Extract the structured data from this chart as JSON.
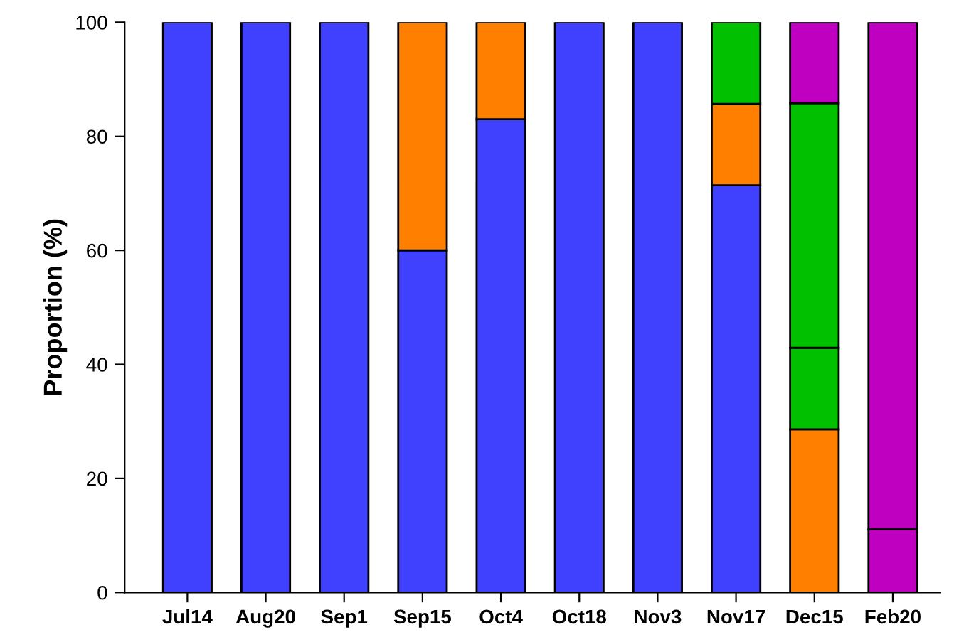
{
  "chart_data": {
    "type": "bar",
    "stacked": true,
    "ylabel": "Proportion (%)",
    "categories": [
      "Jul14",
      "Aug20",
      "Sep1",
      "Sep15",
      "Oct4",
      "Oct18",
      "Nov3",
      "Nov17",
      "Dec15",
      "Feb20"
    ],
    "series": [
      {
        "color": "#4040ff",
        "values": [
          100,
          100,
          100,
          60,
          83,
          100,
          100,
          71.4,
          0,
          0
        ]
      },
      {
        "color": "#ff8000",
        "values": [
          0,
          0,
          0,
          40,
          17,
          0,
          0,
          14.3,
          28.6,
          0
        ]
      },
      {
        "color": "#00c000",
        "values": [
          0,
          0,
          0,
          0,
          0,
          0,
          0,
          14.3,
          14.3,
          0
        ]
      },
      {
        "color": "#00c000",
        "values": [
          0,
          0,
          0,
          0,
          0,
          0,
          0,
          0,
          42.9,
          0
        ]
      },
      {
        "color": "#c000c0",
        "values": [
          0,
          0,
          0,
          0,
          0,
          0,
          0,
          0,
          14.2,
          11.1
        ]
      },
      {
        "color": "#c000c0",
        "values": [
          0,
          0,
          0,
          0,
          0,
          0,
          0,
          0,
          0,
          88.9
        ]
      }
    ],
    "ylim": [
      0,
      100
    ],
    "yticks": [
      0,
      20,
      40,
      60,
      80,
      100
    ],
    "grid": false
  }
}
